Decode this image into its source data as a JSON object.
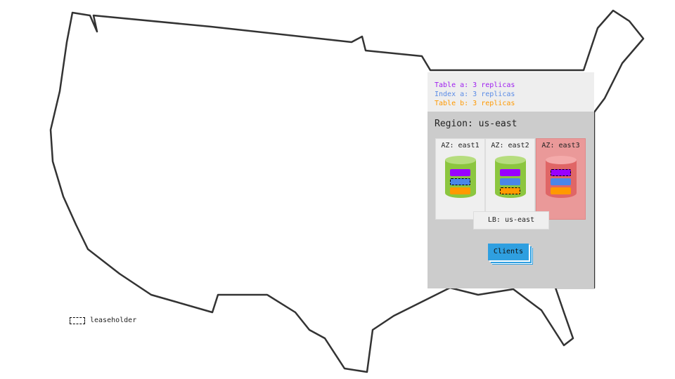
{
  "legend": [
    {
      "text": "Table a: 3 replicas",
      "color": "#a020f0"
    },
    {
      "text": "Index a: 3 replicas",
      "color": "#5b8ce6"
    },
    {
      "text": "Table b: 3 replicas",
      "color": "#ff9900"
    }
  ],
  "region": {
    "title": "Region: us-east"
  },
  "zones": [
    {
      "label": "AZ: east1",
      "status": "healthy",
      "leaseholder": "Index a"
    },
    {
      "label": "AZ: east2",
      "status": "healthy",
      "leaseholder": "Table b"
    },
    {
      "label": "AZ: east3",
      "status": "failed",
      "leaseholder": "Table a"
    }
  ],
  "lb": {
    "label": "LB: us-east"
  },
  "clients": {
    "label": "Clients"
  },
  "key": {
    "leaseholder": "leaseholder"
  },
  "colors": {
    "table_a": "#9900ff",
    "index_a": "#4a86e8",
    "table_b": "#ff9900",
    "healthy": "#8cc63f",
    "failed": "#e06666",
    "clients": "#2f9fe0"
  }
}
